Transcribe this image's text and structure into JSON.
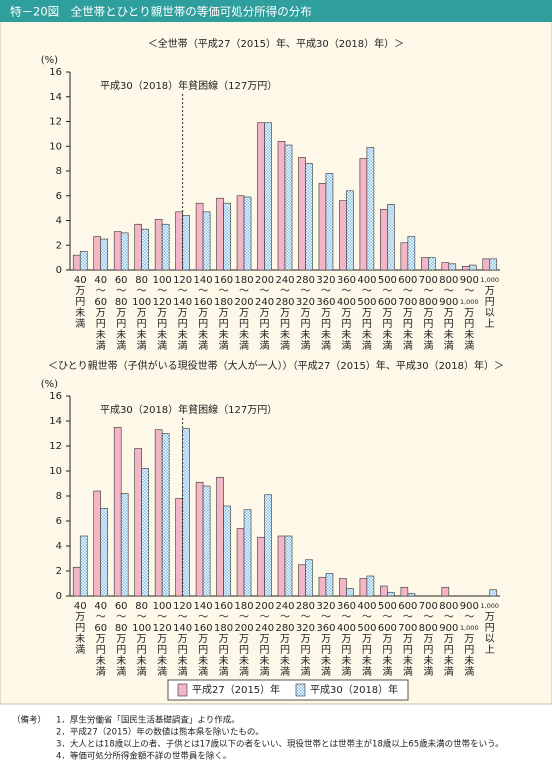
{
  "header": {
    "title": "特－20図　全世帯とひとり親世帯の等価可処分所得の分布"
  },
  "chart_data": [
    {
      "type": "bar",
      "title": "＜全世帯（平成27（2015）年、平成30（2018）年）＞",
      "ylabel": "(%)",
      "annotation": "平成30（2018）年貧困線（127万円）",
      "categories": [
        "40万円未満",
        "40～60万円未満",
        "60～80万円未満",
        "80～100万円未満",
        "100～120万円未満",
        "120～140万円未満",
        "140～160万円未満",
        "160～180万円未満",
        "180～200万円未満",
        "200～240万円未満",
        "240～280万円未満",
        "280～320万円未満",
        "320～360万円未満",
        "360～400万円未満",
        "400～500万円未満",
        "500～600万円未満",
        "600～700万円未満",
        "700～800万円未満",
        "800～900万円未満",
        "900～1,000万円未満",
        "1,000万円以上"
      ],
      "series": [
        {
          "color": "#f4b6c6",
          "values": [
            1.2,
            2.7,
            3.1,
            3.7,
            4.1,
            4.7,
            5.4,
            5.8,
            6.0,
            11.9,
            10.4,
            9.1,
            7.0,
            5.6,
            9.0,
            4.9,
            2.2,
            1.0,
            0.6,
            0.3,
            0.9
          ]
        },
        {
          "color": "#7dbde8",
          "values": [
            1.5,
            2.5,
            3.0,
            3.3,
            3.7,
            4.4,
            4.7,
            5.4,
            5.9,
            11.9,
            10.1,
            8.6,
            7.8,
            6.4,
            9.9,
            5.3,
            2.7,
            1.0,
            0.5,
            0.4,
            0.9
          ]
        }
      ],
      "ylim": [
        0,
        16
      ],
      "yticks": [
        0,
        2,
        4,
        6,
        8,
        10,
        12,
        14,
        16
      ]
    },
    {
      "type": "bar",
      "title": "＜ひとり親世帯（子供がいる現役世帯（大人が一人））（平成27（2015）年、平成30（2018）年）＞",
      "ylabel": "(%)",
      "annotation": "平成30（2018）年貧困線（127万円）",
      "categories": [
        "40万円未満",
        "40～60万円未満",
        "60～80万円未満",
        "80～100万円未満",
        "100～120万円未満",
        "120～140万円未満",
        "140～160万円未満",
        "160～180万円未満",
        "180～200万円未満",
        "200～240万円未満",
        "240～280万円未満",
        "280～320万円未満",
        "320～360万円未満",
        "360～400万円未満",
        "400～500万円未満",
        "500～600万円未満",
        "600～700万円未満",
        "700～800万円未満",
        "800～900万円未満",
        "900～1,000万円未満",
        "1,000万円以上"
      ],
      "series": [
        {
          "name": "平成27（2015）年",
          "color": "#f4b6c6",
          "values": [
            2.3,
            8.4,
            13.5,
            11.8,
            13.3,
            7.8,
            9.1,
            9.5,
            5.4,
            4.7,
            4.8,
            2.5,
            1.5,
            1.4,
            1.4,
            0.8,
            0.7,
            0,
            0.7,
            0,
            0
          ]
        },
        {
          "name": "平成30（2018）年",
          "color": "#7dbde8",
          "values": [
            4.8,
            7.0,
            8.2,
            10.2,
            13.0,
            13.4,
            8.8,
            7.2,
            6.9,
            8.1,
            4.8,
            2.9,
            1.8,
            0.6,
            1.6,
            0.3,
            0.2,
            0,
            0,
            0,
            0.5
          ]
        }
      ],
      "ylim": [
        0,
        16
      ],
      "yticks": [
        0,
        2,
        4,
        6,
        8,
        10,
        12,
        14,
        16
      ]
    }
  ],
  "notes": {
    "label": "（備考）",
    "items": [
      "1．厚生労働省「国民生活基礎調査」より作成。",
      "2．平成27（2015）年の数値は熊本県を除いたもの。",
      "3．大人とは18歳以上の者、子供とは17歳以下の者をいい、現役世帯とは世帯主が18歳以上65歳未満の世帯をいう。",
      "4．等価可処分所得金額不詳の世帯員を除く。"
    ]
  }
}
